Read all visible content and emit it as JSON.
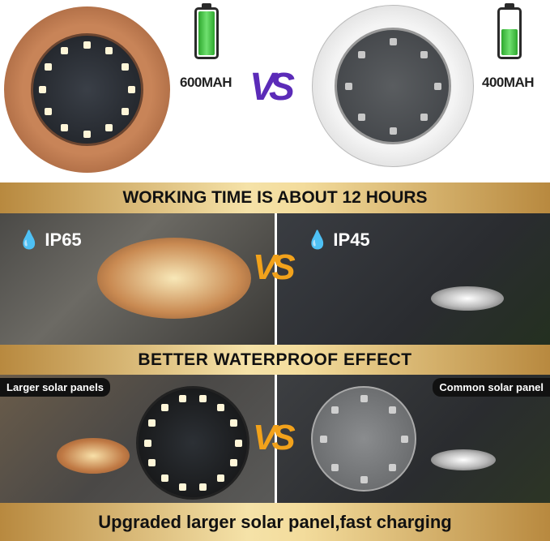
{
  "top": {
    "left_capacity": "600MAH",
    "right_capacity": "400MAH",
    "vs": "VS",
    "left_battery_level": 1.0,
    "right_battery_level": 0.6
  },
  "banners": {
    "working_time": "WORKING TIME IS ABOUT 12 HOURS",
    "waterproof": "BETTER WATERPROOF EFFECT",
    "bottom": "Upgraded larger solar panel,fast charging"
  },
  "row1": {
    "left_rating": "IP65",
    "right_rating": "IP45",
    "vs": "VS"
  },
  "row2": {
    "left_label": "Larger solar panels",
    "right_label": "Common solar panel",
    "vs": "VS"
  },
  "colors": {
    "gold": "#f3dc9c",
    "vs_orange": "#f2a21b",
    "vs_purple": "#5b2bb8",
    "copper": "#b87548",
    "battery_green": "#3fbf3f"
  }
}
